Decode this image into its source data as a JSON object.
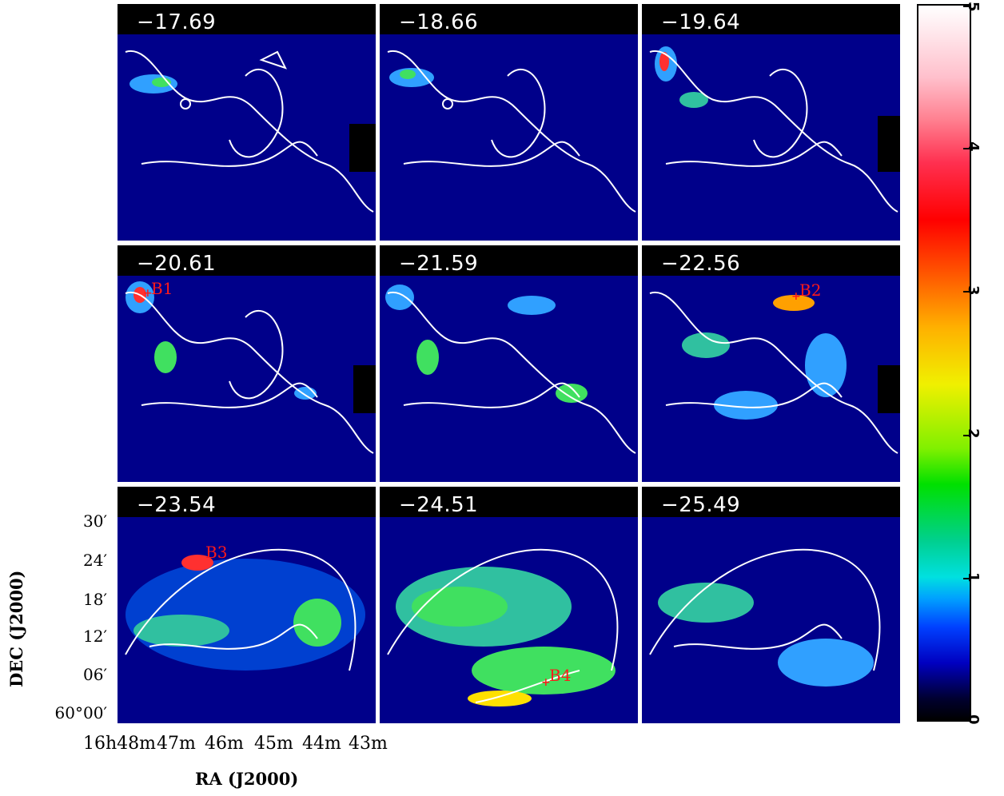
{
  "panels": [
    {
      "velocity": "−17.69"
    },
    {
      "velocity": "−18.66"
    },
    {
      "velocity": "−19.64"
    },
    {
      "velocity": "−20.61",
      "marker": "B1"
    },
    {
      "velocity": "−21.59"
    },
    {
      "velocity": "−22.56",
      "marker": "B2"
    },
    {
      "velocity": "−23.54",
      "marker": "B3"
    },
    {
      "velocity": "−24.51",
      "marker": "B4"
    },
    {
      "velocity": "−25.49"
    }
  ],
  "axes": {
    "ylabel": "DEC (J2000)",
    "xlabel": "RA (J2000)",
    "yticks": [
      "30′",
      "24′",
      "18′",
      "12′",
      "06′",
      "60°00′"
    ],
    "xticks": [
      "16h48m",
      "47m",
      "46m",
      "45m",
      "44m",
      "43m"
    ]
  },
  "colorbar": {
    "ticks": [
      "5",
      "4",
      "3",
      "2",
      "1",
      "0"
    ]
  },
  "colors": {
    "background": "#000000",
    "contour": "#ffffff",
    "marker": "#ff1a1a"
  }
}
